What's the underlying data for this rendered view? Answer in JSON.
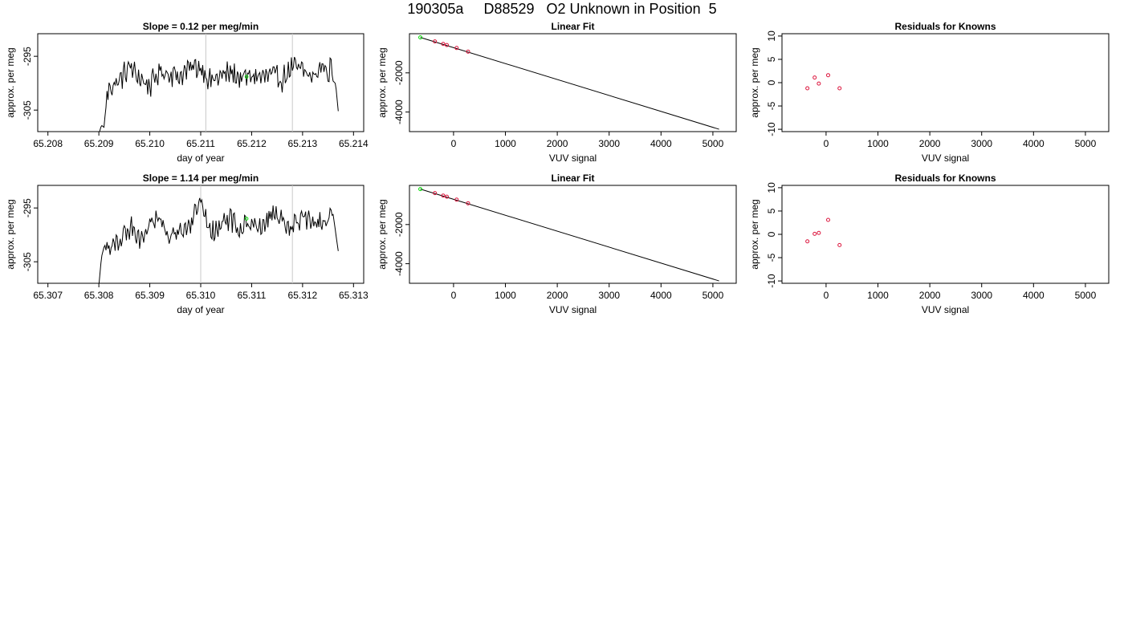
{
  "page_title": "190305a     D88529   O2 Unknown in Position  5",
  "colors": {
    "trace": "#000000",
    "known_point": "#dc143c",
    "unknown_point": "#00dd00",
    "guide_line": "#c8c8c8",
    "frame": "#000000"
  },
  "chart_data": [
    {
      "type": "line",
      "title": "Slope =  0.12  per meg/min",
      "xlabel": "day of year",
      "ylabel": "approx. per meg",
      "xlim": [
        65.2078,
        65.2142
      ],
      "ylim": [
        -309,
        -290.8
      ],
      "xticks": [
        65.208,
        65.209,
        65.21,
        65.211,
        65.212,
        65.213,
        65.214
      ],
      "xtick_labels": [
        "65.208",
        "65.209",
        "65.210",
        "65.211",
        "65.212",
        "65.213",
        "65.214"
      ],
      "yticks": [
        -295,
        -305
      ],
      "ytick_labels": [
        "-295",
        "-305"
      ],
      "trace_start": 65.209,
      "trace_end": 65.2137,
      "trace_step": 2e-05,
      "trace_mean": -298.9,
      "guide_lines_x": [
        65.2111,
        65.2128
      ],
      "unknown_point": {
        "x": 65.2119,
        "y": -298.8
      },
      "series": [
        {
          "x": [
            65.209,
            65.20905,
            65.2091,
            65.20915,
            65.2092,
            65.2094,
            65.2096,
            65.2098,
            65.21,
            65.2102,
            65.2104,
            65.2106,
            65.2108,
            65.211,
            65.2112,
            65.2114,
            65.2116,
            65.2118,
            65.212,
            65.2122,
            65.2124,
            65.2126,
            65.2128,
            65.213,
            65.2132,
            65.2134,
            65.2135,
            65.21355,
            65.2136,
            65.21365,
            65.2137,
            65.21375
          ],
          "y": [
            -309.5,
            -307.8,
            -308.2,
            -303.2,
            -300.8,
            -299.6,
            -296.9,
            -299.1,
            -300.5,
            -297.8,
            -298.2,
            -298.7,
            -297.1,
            -297.0,
            -299.6,
            -298.7,
            -298.0,
            -299.2,
            -298.6,
            -298.9,
            -298.5,
            -299.3,
            -297.0,
            -297.6,
            -299.1,
            -296.5,
            -298.3,
            -296.8,
            -299.6,
            -300.1,
            -305.2,
            -309.5
          ]
        }
      ]
    },
    {
      "type": "scatter",
      "title": "Linear Fit",
      "xlabel": "VUV signal",
      "ylabel": "approx. per meg",
      "xlim": [
        -850,
        5450
      ],
      "ylim": [
        -5000,
        0
      ],
      "xticks": [
        0,
        1000,
        2000,
        3000,
        4000,
        5000
      ],
      "xtick_labels": [
        "0",
        "1000",
        "2000",
        "3000",
        "4000",
        "5000"
      ],
      "yticks": [
        -2000,
        -4000
      ],
      "ytick_labels": [
        "-2000",
        "-4000"
      ],
      "fit_line": {
        "x": [
          -640,
          5120
        ],
        "y": [
          -190,
          -4880
        ]
      },
      "known_points": {
        "x": [
          -360,
          -200,
          -130,
          60,
          280
        ],
        "y": [
          -395,
          -520,
          -580,
          -730,
          -915
        ]
      },
      "unknown_point": {
        "x": -640,
        "y": -190
      }
    },
    {
      "type": "scatter",
      "title": "Residuals for Knowns",
      "xlabel": "VUV signal",
      "ylabel": "approx. per meg",
      "xlim": [
        -850,
        5450
      ],
      "ylim": [
        -10.5,
        10.5
      ],
      "xticks": [
        0,
        1000,
        2000,
        3000,
        4000,
        5000
      ],
      "xtick_labels": [
        "0",
        "1000",
        "2000",
        "3000",
        "4000",
        "5000"
      ],
      "yticks": [
        10,
        5,
        0,
        -5,
        -10
      ],
      "ytick_labels": [
        "10",
        "5",
        "0",
        "-5",
        "-10"
      ],
      "known_points": {
        "x": [
          -360,
          -220,
          -140,
          40,
          260
        ],
        "y": [
          -1.2,
          1.1,
          -0.2,
          1.6,
          -1.2
        ]
      }
    },
    {
      "type": "line",
      "title": "Slope =  1.14  per meg/min",
      "xlabel": "day of year",
      "ylabel": "approx. per meg",
      "xlim": [
        65.3068,
        65.3132
      ],
      "ylim": [
        -309,
        -290.8
      ],
      "xticks": [
        65.307,
        65.308,
        65.309,
        65.31,
        65.311,
        65.312,
        65.313
      ],
      "xtick_labels": [
        "65.307",
        "65.308",
        "65.309",
        "65.310",
        "65.311",
        "65.312",
        "65.313"
      ],
      "yticks": [
        -295,
        -305
      ],
      "ytick_labels": [
        "-295",
        "-305"
      ],
      "trace_start": 65.308,
      "trace_end": 65.3127,
      "trace_step": 2e-05,
      "trace_mean": -298.7,
      "guide_lines_x": [
        65.31,
        65.3118
      ],
      "unknown_point": {
        "x": 65.3109,
        "y": -297.0
      },
      "series": [
        {
          "x": [
            65.308,
            65.30805,
            65.3081,
            65.3082,
            65.3084,
            65.3086,
            65.3088,
            65.309,
            65.3092,
            65.3094,
            65.3096,
            65.3098,
            65.31,
            65.3102,
            65.3104,
            65.3106,
            65.3108,
            65.311,
            65.3112,
            65.3114,
            65.3116,
            65.3118,
            65.312,
            65.3122,
            65.3124,
            65.3126,
            65.3127,
            65.31273
          ],
          "y": [
            -309.5,
            -304.2,
            -302.3,
            -303.1,
            -301.4,
            -298.4,
            -300.7,
            -298.0,
            -297.4,
            -300.2,
            -299.6,
            -298.1,
            -294.0,
            -299.8,
            -298.2,
            -297.3,
            -299.4,
            -296.9,
            -298.8,
            -295.6,
            -297.1,
            -298.6,
            -296.8,
            -297.4,
            -297.9,
            -296.2,
            -303.0,
            -309.5
          ]
        }
      ]
    },
    {
      "type": "scatter",
      "title": "Linear Fit",
      "xlabel": "VUV signal",
      "ylabel": "approx. per meg",
      "xlim": [
        -850,
        5450
      ],
      "ylim": [
        -5000,
        0
      ],
      "xticks": [
        0,
        1000,
        2000,
        3000,
        4000,
        5000
      ],
      "xtick_labels": [
        "0",
        "1000",
        "2000",
        "3000",
        "4000",
        "5000"
      ],
      "yticks": [
        -2000,
        -4000
      ],
      "ytick_labels": [
        "-2000",
        "-4000"
      ],
      "fit_line": {
        "x": [
          -640,
          5120
        ],
        "y": [
          -190,
          -4880
        ]
      },
      "known_points": {
        "x": [
          -360,
          -200,
          -130,
          60,
          280
        ],
        "y": [
          -395,
          -520,
          -580,
          -730,
          -915
        ]
      },
      "unknown_point": {
        "x": -640,
        "y": -190
      }
    },
    {
      "type": "scatter",
      "title": "Residuals for Knowns",
      "xlabel": "VUV signal",
      "ylabel": "approx. per meg",
      "xlim": [
        -850,
        5450
      ],
      "ylim": [
        -10.5,
        10.5
      ],
      "xticks": [
        0,
        1000,
        2000,
        3000,
        4000,
        5000
      ],
      "xtick_labels": [
        "0",
        "1000",
        "2000",
        "3000",
        "4000",
        "5000"
      ],
      "yticks": [
        10,
        5,
        0,
        -5,
        -10
      ],
      "ytick_labels": [
        "10",
        "5",
        "0",
        "-5",
        "-10"
      ],
      "known_points": {
        "x": [
          -360,
          -220,
          -140,
          40,
          260
        ],
        "y": [
          -1.5,
          0.1,
          0.3,
          3.1,
          -2.3
        ]
      }
    }
  ]
}
